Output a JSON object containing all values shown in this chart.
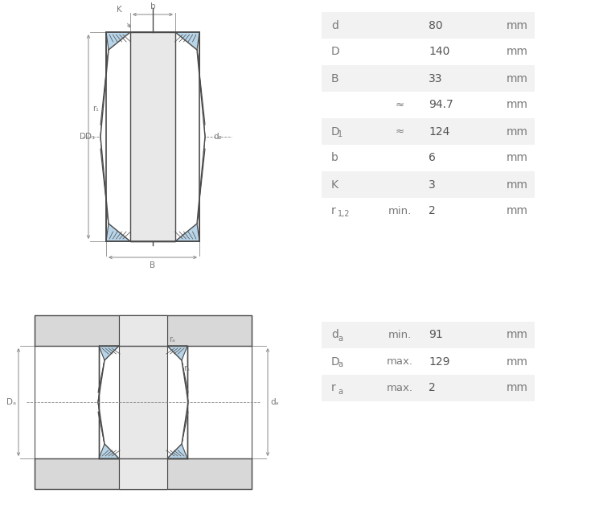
{
  "bg_color": "#ffffff",
  "table_bg_odd": "#f2f2f2",
  "table_bg_even": "#ffffff",
  "text_color": "#7a7a7a",
  "value_color": "#555555",
  "table1_rows": [
    {
      "label": "d",
      "label_sub": "",
      "qualifier": "",
      "value": "80",
      "unit": "mm"
    },
    {
      "label": "D",
      "label_sub": "",
      "qualifier": "",
      "value": "140",
      "unit": "mm"
    },
    {
      "label": "B",
      "label_sub": "",
      "qualifier": "",
      "value": "33",
      "unit": "mm"
    },
    {
      "label": "",
      "label_sub": "",
      "qualifier": "≈",
      "value": "94.7",
      "unit": "mm"
    },
    {
      "label": "D",
      "label_sub": "1",
      "qualifier": "≈",
      "value": "124",
      "unit": "mm"
    },
    {
      "label": "b",
      "label_sub": "",
      "qualifier": "",
      "value": "6",
      "unit": "mm"
    },
    {
      "label": "K",
      "label_sub": "",
      "qualifier": "",
      "value": "3",
      "unit": "mm"
    },
    {
      "label": "r",
      "label_sub": "1,2",
      "qualifier": "min.",
      "value": "2",
      "unit": "mm"
    }
  ],
  "table2_rows": [
    {
      "label": "d",
      "label_sub": "a",
      "qualifier": "min.",
      "value": "91",
      "unit": "mm"
    },
    {
      "label": "D",
      "label_sub": "a",
      "qualifier": "max.",
      "value": "129",
      "unit": "mm"
    },
    {
      "label": "r",
      "label_sub": "a",
      "qualifier": "max.",
      "value": "2",
      "unit": "mm"
    }
  ],
  "bearing_fill": "#b8d4e8",
  "bearing_stroke": "#4a4a4a",
  "metal_fill": "#d8d8d8",
  "metal_stroke": "#4a4a4a",
  "dim_color": "#888888",
  "shaft_fill": "#e8e8e8"
}
